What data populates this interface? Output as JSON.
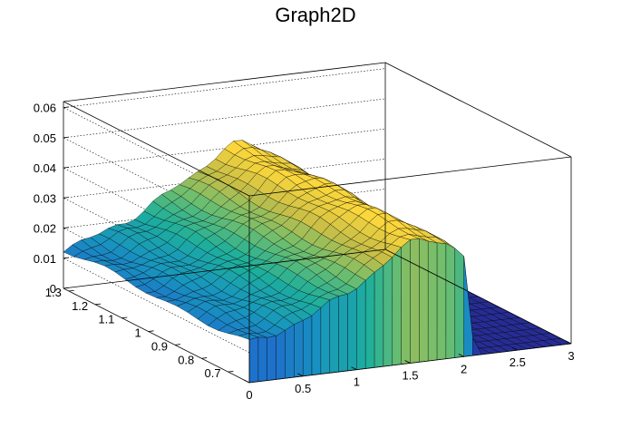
{
  "chart_data": {
    "type": "surface3d",
    "title": "Graph2D",
    "x_range": [
      0,
      3
    ],
    "y_range": [
      0.62,
      1.32
    ],
    "z_range": [
      0,
      0.062
    ],
    "x_ticks": [
      "0",
      "0.5",
      "1",
      "1.5",
      "2",
      "2.5",
      "3"
    ],
    "y_ticks": [
      "0.7",
      "0.8",
      "0.9",
      "1",
      "1.1",
      "1.2",
      "1.3"
    ],
    "z_ticks": [
      "0",
      "0.01",
      "0.02",
      "0.03",
      "0.04",
      "0.05",
      "0.06"
    ],
    "colormap": "viridis-like (blue → teal → green → yellow)",
    "grid": "dotted lines on back walls",
    "surface_profile": {
      "description": "z vs x; rises linearly with x, peaks near x≈1.55, drops to ~0 at x≈2.1; mostly independent of y",
      "x": [
        0,
        0.3,
        0.6,
        0.9,
        1.2,
        1.45,
        1.55,
        1.7,
        1.85,
        2.0,
        2.1,
        2.15,
        3.0
      ],
      "z": [
        0.013,
        0.016,
        0.02,
        0.026,
        0.032,
        0.039,
        0.041,
        0.041,
        0.038,
        0.033,
        0.0,
        0.0,
        0.0
      ]
    }
  }
}
